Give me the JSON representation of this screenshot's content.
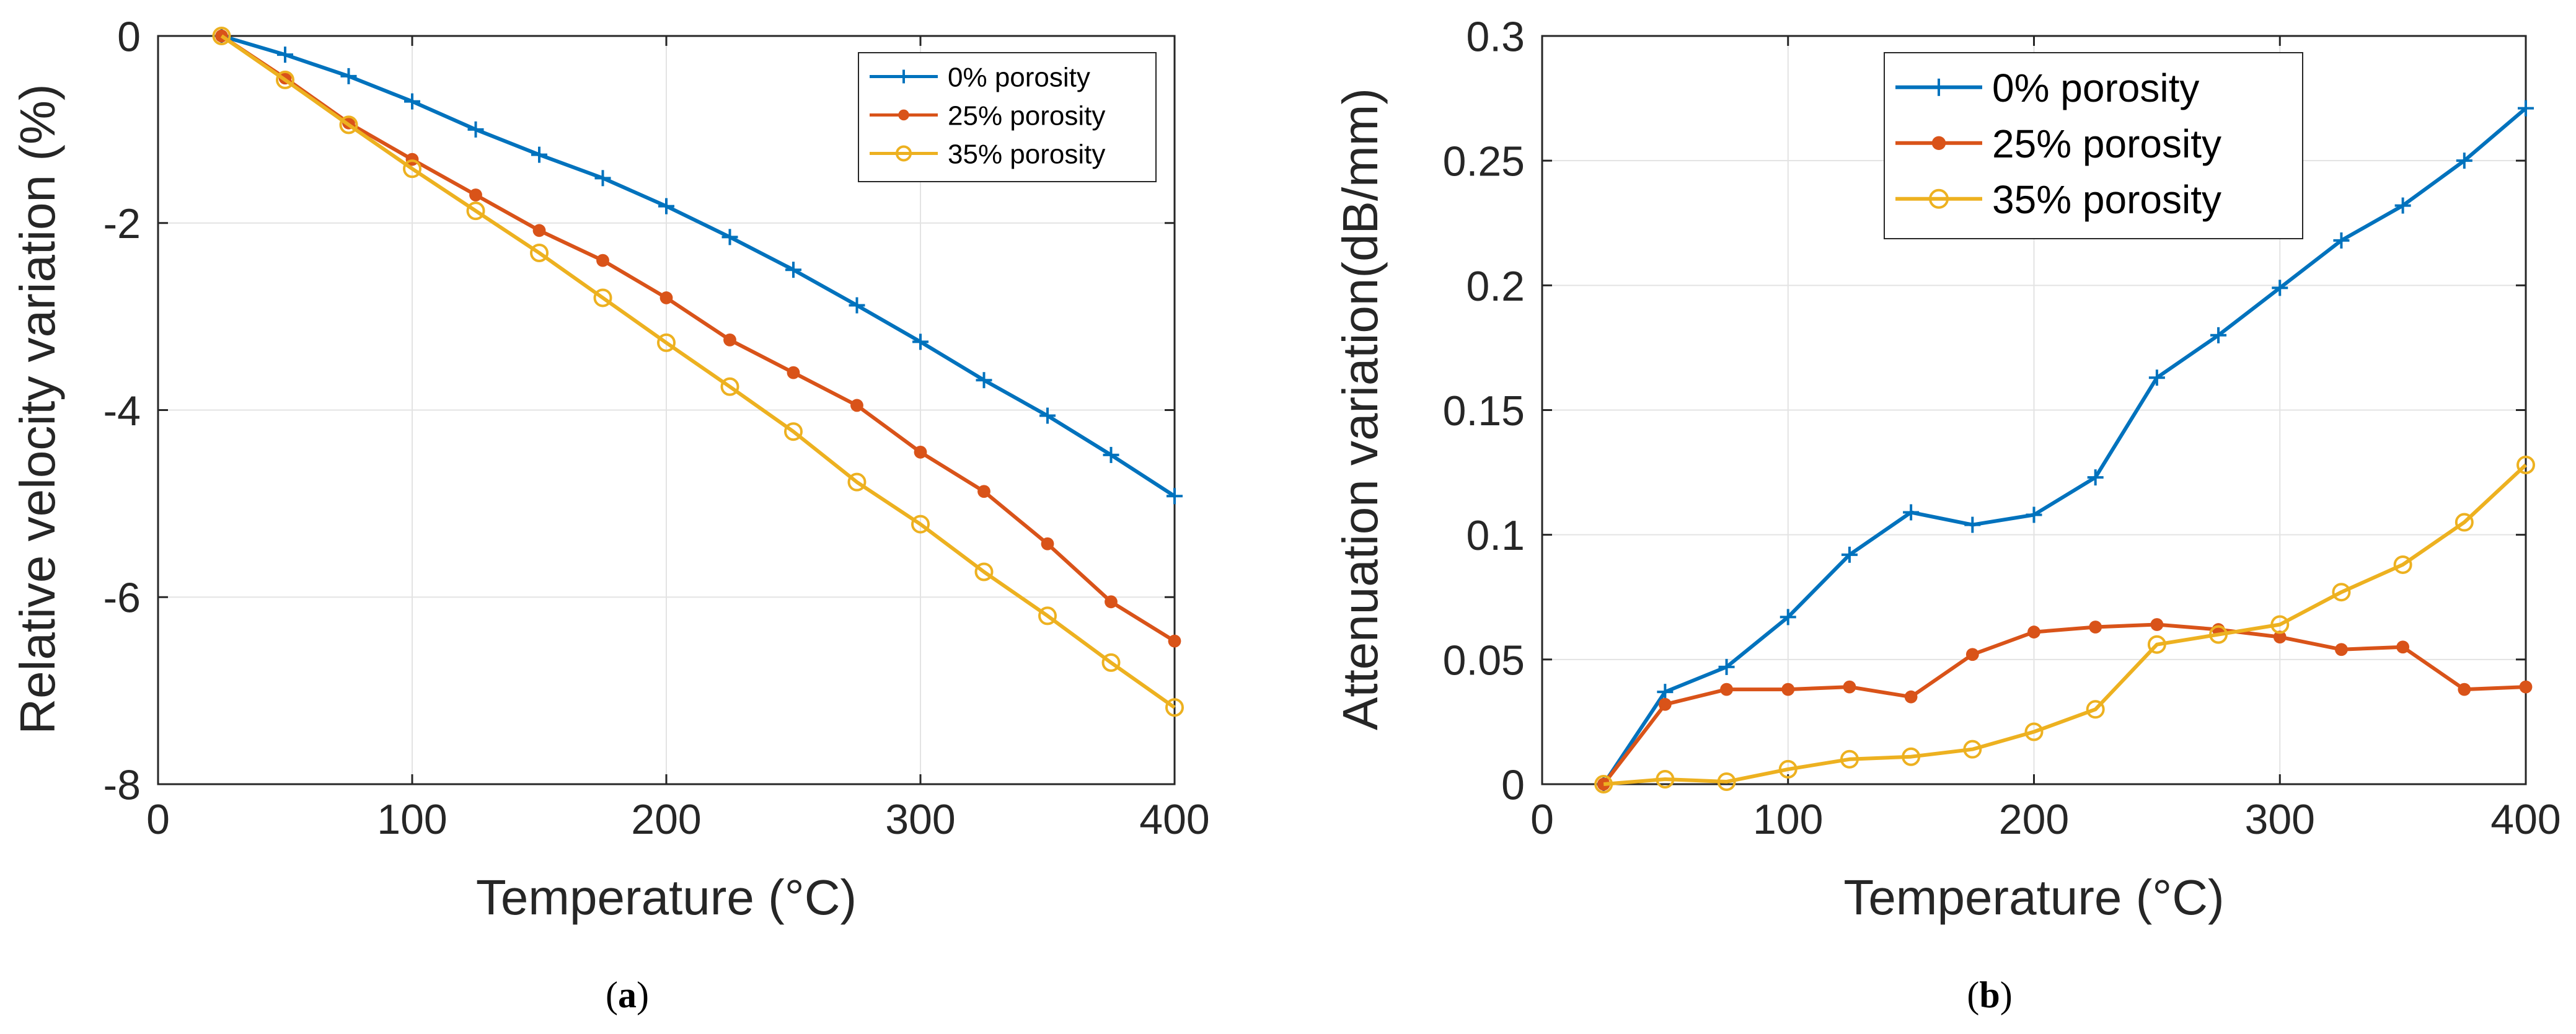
{
  "chart_data": [
    {
      "type": "line",
      "title": "",
      "subplot_label": "(a)",
      "subplot_letter": "a",
      "xlabel": "Temperature (°C)",
      "ylabel": "Relative velocity variation (%)",
      "xlim": [
        0,
        400
      ],
      "ylim": [
        -8,
        0
      ],
      "xticks": [
        0,
        100,
        200,
        300,
        400
      ],
      "yticks": [
        0,
        -2,
        -4,
        -6,
        -8
      ],
      "grid": true,
      "legend_position": "top-right",
      "x": [
        25,
        50,
        75,
        100,
        125,
        150,
        175,
        200,
        225,
        250,
        275,
        300,
        325,
        350,
        375,
        400
      ],
      "series": [
        {
          "name": "0% porosity",
          "marker": "plus",
          "color": "#0072BD",
          "values": [
            0,
            -0.2,
            -0.43,
            -0.7,
            -1.0,
            -1.27,
            -1.52,
            -1.82,
            -2.15,
            -2.5,
            -2.88,
            -3.27,
            -3.68,
            -4.06,
            -4.48,
            -4.92
          ]
        },
        {
          "name": "25% porosity",
          "marker": "dot",
          "color": "#D95319",
          "values": [
            0,
            -0.45,
            -0.93,
            -1.32,
            -1.7,
            -2.08,
            -2.4,
            -2.8,
            -3.25,
            -3.6,
            -3.95,
            -4.45,
            -4.87,
            -5.43,
            -6.05,
            -6.47
          ]
        },
        {
          "name": "35% porosity",
          "marker": "circle",
          "color": "#EDB120",
          "values": [
            0,
            -0.47,
            -0.95,
            -1.42,
            -1.87,
            -2.32,
            -2.8,
            -3.28,
            -3.75,
            -4.23,
            -4.77,
            -5.22,
            -5.73,
            -6.2,
            -6.7,
            -7.18
          ]
        }
      ]
    },
    {
      "type": "line",
      "title": "",
      "subplot_label": "(b)",
      "subplot_letter": "b",
      "xlabel": "Temperature (°C)",
      "ylabel": "Attenuation variation(dB/mm)",
      "xlim": [
        0,
        400
      ],
      "ylim": [
        0,
        0.3
      ],
      "xticks": [
        0,
        100,
        200,
        300,
        400
      ],
      "yticks": [
        0,
        0.05,
        0.1,
        0.15,
        0.2,
        0.25,
        0.3
      ],
      "grid": true,
      "legend_position": "top-center",
      "x": [
        25,
        50,
        75,
        100,
        125,
        150,
        175,
        200,
        225,
        250,
        275,
        300,
        325,
        350,
        375,
        400
      ],
      "series": [
        {
          "name": "0% porosity",
          "marker": "plus",
          "color": "#0072BD",
          "values": [
            0,
            0.037,
            0.047,
            0.067,
            0.092,
            0.109,
            0.104,
            0.108,
            0.123,
            0.163,
            0.18,
            0.199,
            0.218,
            0.232,
            0.25,
            0.271
          ]
        },
        {
          "name": "25% porosity",
          "marker": "dot",
          "color": "#D95319",
          "values": [
            0,
            0.032,
            0.038,
            0.038,
            0.039,
            0.035,
            0.052,
            0.061,
            0.063,
            0.064,
            0.062,
            0.059,
            0.054,
            0.055,
            0.038,
            0.039
          ]
        },
        {
          "name": "35% porosity",
          "marker": "circle",
          "color": "#EDB120",
          "values": [
            0,
            0.002,
            0.001,
            0.006,
            0.01,
            0.011,
            0.014,
            0.021,
            0.03,
            0.056,
            0.06,
            0.064,
            0.077,
            0.088,
            0.105,
            0.128
          ]
        }
      ]
    }
  ]
}
